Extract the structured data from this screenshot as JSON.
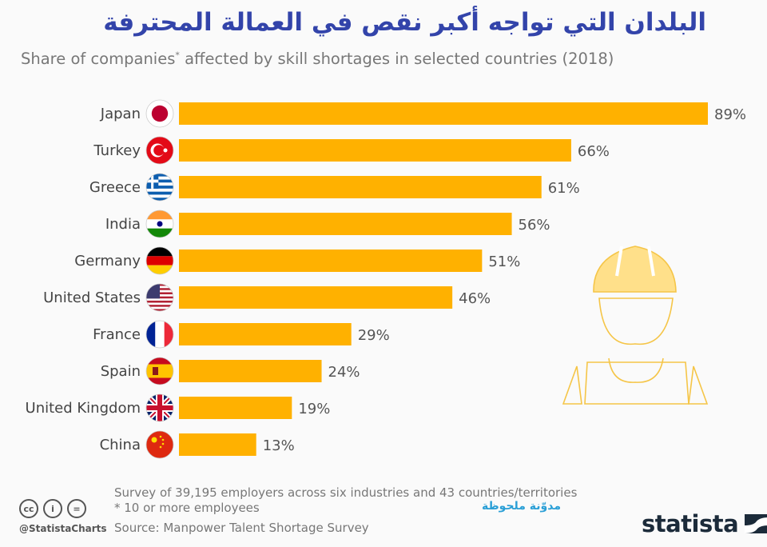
{
  "header": {
    "title_ar": "البلدان التي تواجه أكبر نقص في العمالة المحترفة",
    "subtitle_pre": "Share of companies",
    "subtitle_sup": "*",
    "subtitle_post": " affected by skill shortages in selected countries (2018)"
  },
  "chart_data": {
    "type": "bar",
    "orientation": "horizontal",
    "title": "البلدان التي تواجه أكبر نقص في العمالة المحترفة",
    "subtitle": "Share of companies* affected by skill shortages in selected countries (2018)",
    "categories": [
      "Japan",
      "Turkey",
      "Greece",
      "India",
      "Germany",
      "United States",
      "France",
      "Spain",
      "United Kingdom",
      "China"
    ],
    "values": [
      89,
      66,
      61,
      56,
      51,
      46,
      29,
      24,
      19,
      13
    ],
    "value_labels": [
      "89%",
      "66%",
      "61%",
      "56%",
      "51%",
      "46%",
      "29%",
      "24%",
      "19%",
      "13%"
    ],
    "unit": "%",
    "xlabel": "",
    "ylabel": "",
    "xlim": [
      0,
      89
    ],
    "grid": false,
    "bar_color": "#ffb100",
    "flags": [
      "japan-flag",
      "turkey-flag",
      "greece-flag",
      "india-flag",
      "germany-flag",
      "usa-flag",
      "france-flag",
      "spain-flag",
      "uk-flag",
      "china-flag"
    ]
  },
  "footer": {
    "note1": "Survey of 39,195 employers across six industries and 43 countries/territories",
    "note2": "* 10 or more employees",
    "source": "Source: Manpower Talent Shortage Survey",
    "handle": "@StatistaCharts",
    "blog": "مدوّنة ملحوظة",
    "logo": "statista",
    "cc_icons": [
      "cc",
      "i",
      "="
    ]
  }
}
